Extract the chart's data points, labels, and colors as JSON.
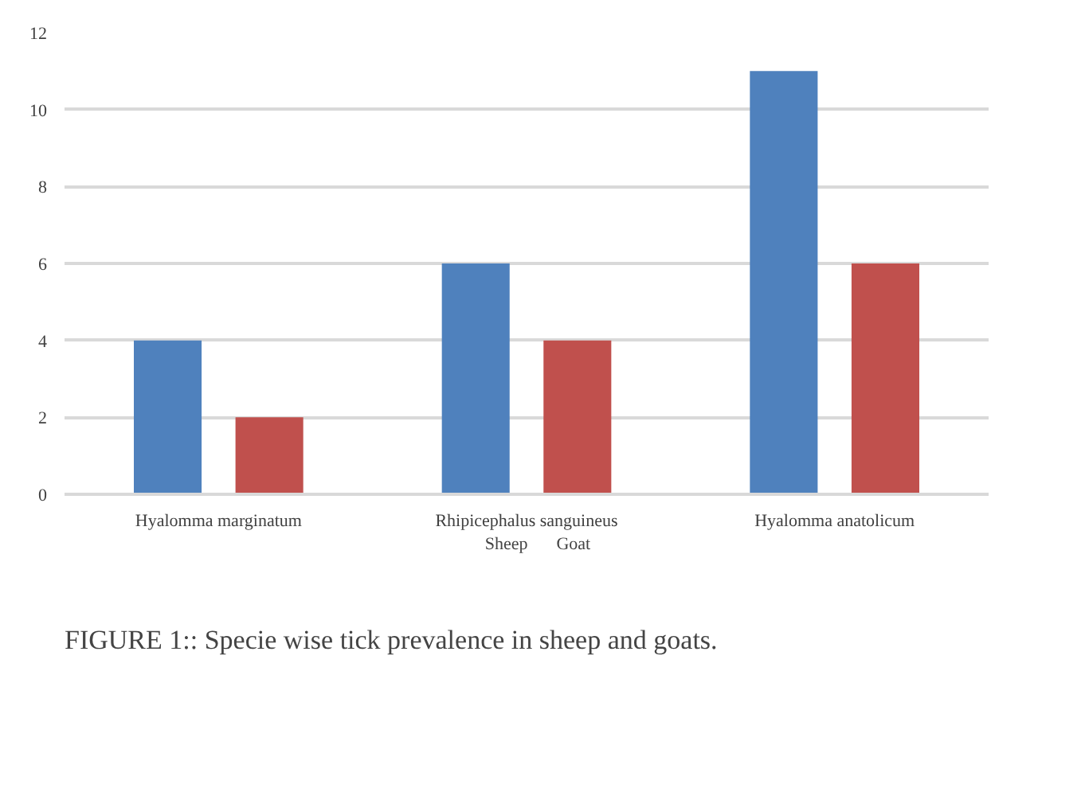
{
  "chart_data": {
    "type": "bar",
    "categories": [
      "Hyalomma marginatum",
      "Rhipicephalus sanguineus",
      "Hyalomma anatolicum"
    ],
    "series": [
      {
        "name": "Sheep",
        "color": "#4f81bd",
        "values": [
          4,
          6,
          11
        ]
      },
      {
        "name": "Goat",
        "color": "#c0504d",
        "values": [
          2,
          4,
          6
        ]
      }
    ],
    "ylim": [
      0,
      12
    ],
    "yticks": [
      0,
      2,
      4,
      6,
      8,
      10,
      12
    ],
    "grid": "y",
    "legend": "bottom",
    "annotations": [
      "FIGURE 1:: Specie wise tick prevalence in sheep and goats."
    ]
  }
}
